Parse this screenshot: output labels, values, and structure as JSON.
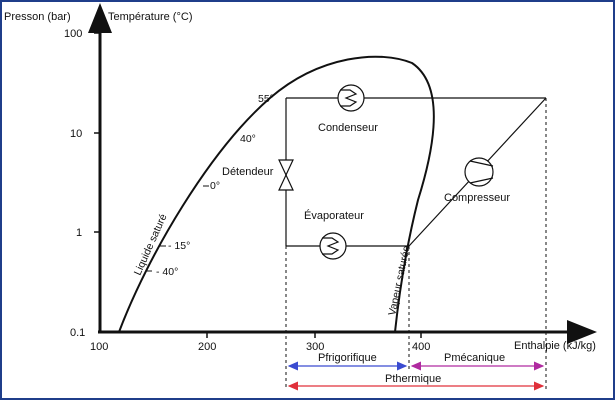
{
  "axes": {
    "y_title_pressure": "Presson (bar)",
    "y_title_temperature": "Température (°C)",
    "x_title": "Enthalpie (kJ/kg)",
    "y_ticks": [
      "100",
      "10",
      "1",
      "0.1"
    ],
    "x_ticks": [
      "100",
      "200",
      "300",
      "400"
    ]
  },
  "curves": {
    "liquid": "Liquide saturé",
    "vapor": "Vapeur saturée"
  },
  "isotherms": [
    "55°",
    "40°",
    "0°",
    "- 15°",
    "- 40°"
  ],
  "components": {
    "condenser": "Condenseur",
    "expansion": "Détendeur",
    "evaporator": "Évaporateur",
    "compressor": "Compresseur"
  },
  "power": {
    "refrigeration": "Pfrigorifique",
    "mechanical": "Pmécanique",
    "thermal": "Pthermique"
  },
  "colors": {
    "frame": "#1f3d8a",
    "refrigeration_arrow": "#3a4bd0",
    "mechanical_arrow": "#b02aa0",
    "thermal_arrow": "#e0303a"
  }
}
